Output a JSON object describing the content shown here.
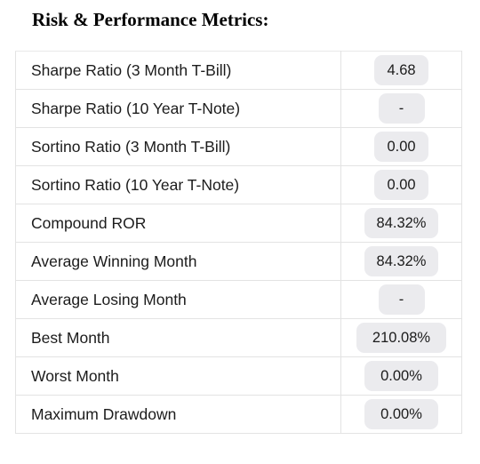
{
  "section": {
    "title": "Risk & Performance Metrics:"
  },
  "metrics": [
    {
      "label": "Sharpe Ratio (3 Month T-Bill)",
      "value": "4.68"
    },
    {
      "label": "Sharpe Ratio (10 Year T-Note)",
      "value": "-"
    },
    {
      "label": "Sortino Ratio (3 Month T-Bill)",
      "value": "0.00"
    },
    {
      "label": "Sortino Ratio (10 Year T-Note)",
      "value": "0.00"
    },
    {
      "label": "Compound ROR",
      "value": "84.32%"
    },
    {
      "label": "Average Winning Month",
      "value": "84.32%"
    },
    {
      "label": "Average Losing Month",
      "value": "-"
    },
    {
      "label": "Best Month",
      "value": "210.08%"
    },
    {
      "label": "Worst Month",
      "value": "0.00%"
    },
    {
      "label": "Maximum Drawdown",
      "value": "0.00%"
    }
  ]
}
